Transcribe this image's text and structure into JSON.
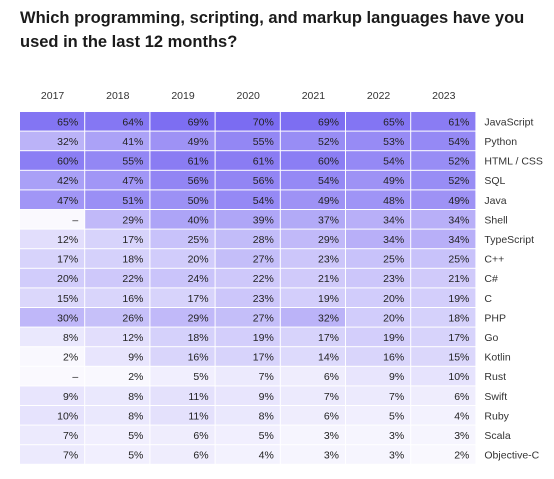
{
  "chart_data": {
    "type": "heatmap",
    "title": "Which programming, scripting, and markup languages have you used in the last 12 months?",
    "years": [
      "2017",
      "2018",
      "2019",
      "2020",
      "2021",
      "2022",
      "2023"
    ],
    "rows": [
      {
        "language": "JavaScript",
        "values": [
          "65%",
          "64%",
          "69%",
          "70%",
          "69%",
          "65%",
          "61%"
        ]
      },
      {
        "language": "Python",
        "values": [
          "32%",
          "41%",
          "49%",
          "55%",
          "52%",
          "53%",
          "54%"
        ]
      },
      {
        "language": "HTML / CSS",
        "values": [
          "60%",
          "55%",
          "61%",
          "61%",
          "60%",
          "54%",
          "52%"
        ]
      },
      {
        "language": "SQL",
        "values": [
          "42%",
          "47%",
          "56%",
          "56%",
          "54%",
          "49%",
          "52%"
        ]
      },
      {
        "language": "Java",
        "values": [
          "47%",
          "51%",
          "50%",
          "54%",
          "49%",
          "48%",
          "49%"
        ]
      },
      {
        "language": "Shell",
        "values": [
          "–",
          "29%",
          "40%",
          "39%",
          "37%",
          "34%",
          "34%"
        ]
      },
      {
        "language": "TypeScript",
        "values": [
          "12%",
          "17%",
          "25%",
          "28%",
          "29%",
          "34%",
          "34%"
        ]
      },
      {
        "language": "C++",
        "values": [
          "17%",
          "18%",
          "20%",
          "27%",
          "23%",
          "25%",
          "25%"
        ]
      },
      {
        "language": "C#",
        "values": [
          "20%",
          "22%",
          "24%",
          "22%",
          "21%",
          "23%",
          "21%"
        ]
      },
      {
        "language": "C",
        "values": [
          "15%",
          "16%",
          "17%",
          "23%",
          "19%",
          "20%",
          "19%"
        ]
      },
      {
        "language": "PHP",
        "values": [
          "30%",
          "26%",
          "29%",
          "27%",
          "32%",
          "20%",
          "18%"
        ]
      },
      {
        "language": "Go",
        "values": [
          "8%",
          "12%",
          "18%",
          "19%",
          "17%",
          "19%",
          "17%"
        ]
      },
      {
        "language": "Kotlin",
        "values": [
          "2%",
          "9%",
          "16%",
          "17%",
          "14%",
          "16%",
          "15%"
        ]
      },
      {
        "language": "Rust",
        "values": [
          "–",
          "2%",
          "5%",
          "7%",
          "6%",
          "9%",
          "10%"
        ]
      },
      {
        "language": "Swift",
        "values": [
          "9%",
          "8%",
          "11%",
          "9%",
          "7%",
          "7%",
          "6%"
        ]
      },
      {
        "language": "Ruby",
        "values": [
          "10%",
          "8%",
          "11%",
          "8%",
          "6%",
          "5%",
          "4%"
        ]
      },
      {
        "language": "Scala",
        "values": [
          "7%",
          "5%",
          "6%",
          "5%",
          "3%",
          "3%",
          "3%"
        ]
      },
      {
        "language": "Objective-C",
        "values": [
          "7%",
          "5%",
          "6%",
          "4%",
          "3%",
          "3%",
          "2%"
        ]
      }
    ],
    "colors": {
      "high": "#7b6cf2",
      "low": "#ffffff",
      "text": "#222222",
      "header_text": "#333333",
      "background": "#ffffff"
    }
  }
}
